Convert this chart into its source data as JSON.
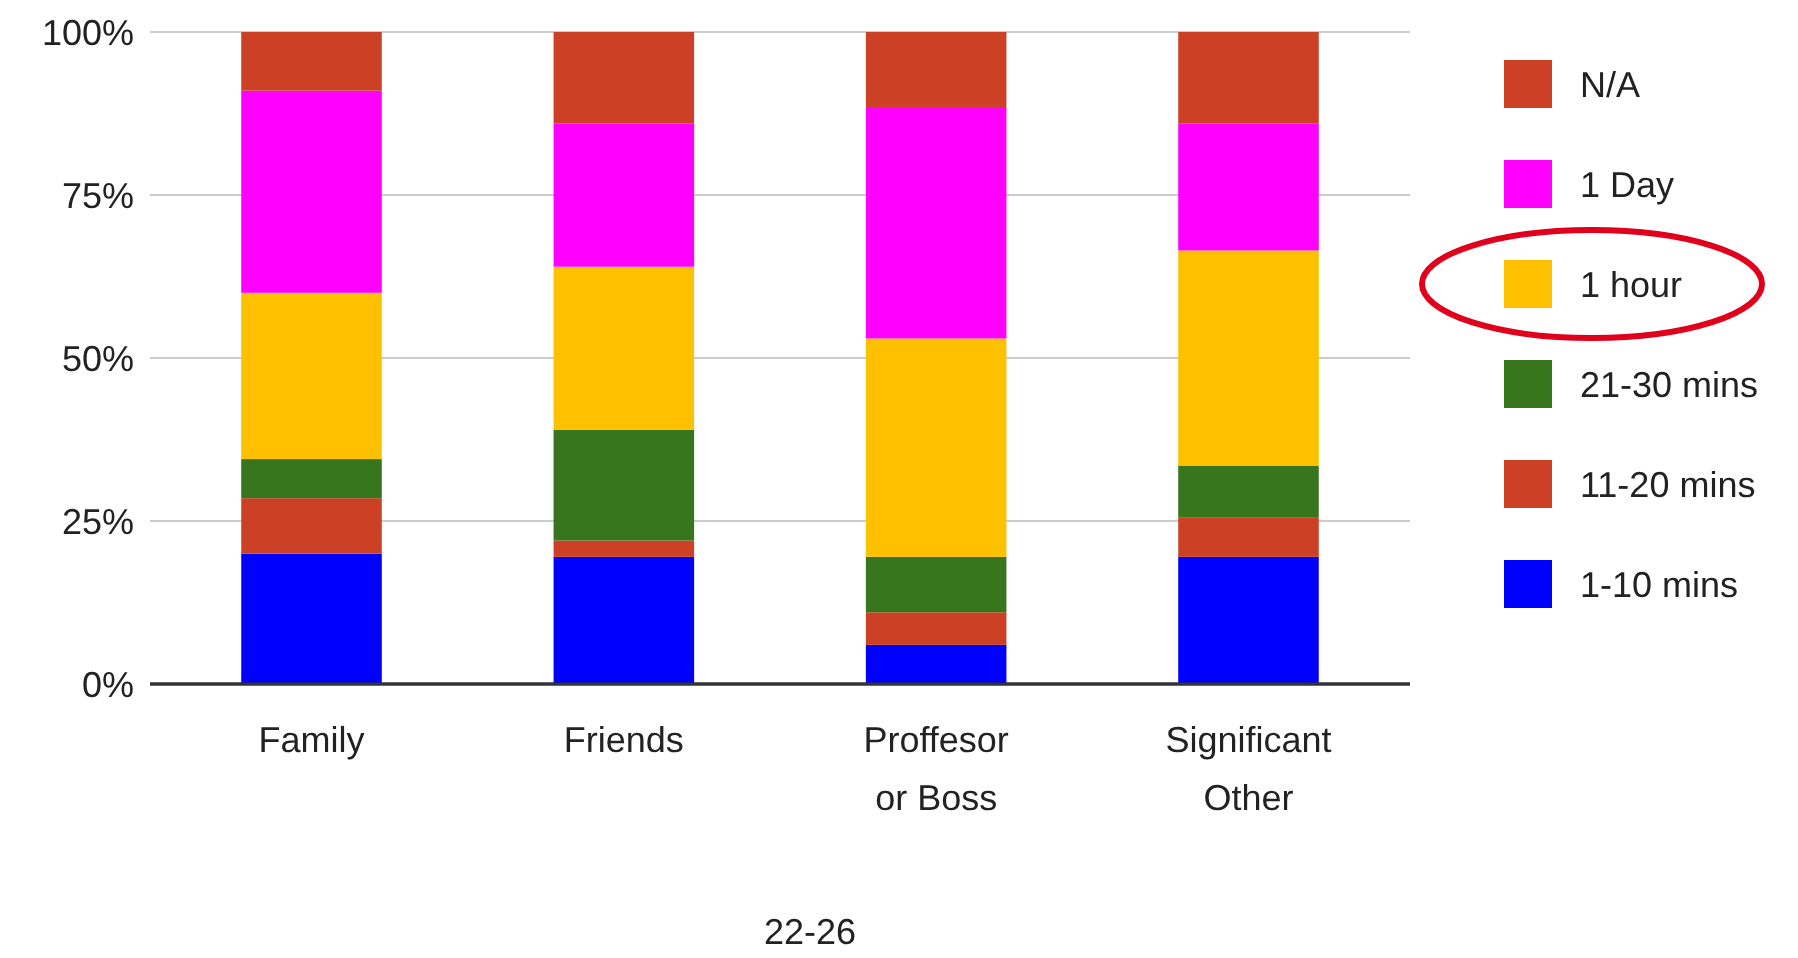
{
  "chart_data": {
    "type": "bar",
    "stacked": true,
    "xlabel": "22-26",
    "categories": [
      "Family",
      "Friends",
      "Proffesor or Boss",
      "Significant Other"
    ],
    "series": [
      {
        "name": "1-10 mins",
        "color": "#0000ff",
        "values": [
          20,
          19.5,
          6,
          19.5
        ]
      },
      {
        "name": "11-20 mins",
        "color": "#cc4125",
        "values": [
          8.5,
          2.5,
          5,
          6
        ]
      },
      {
        "name": "21-30 mins",
        "color": "#38761d",
        "values": [
          6,
          17,
          8.5,
          8
        ]
      },
      {
        "name": "1 hour",
        "color": "#ffc000",
        "values": [
          25.5,
          25,
          33.5,
          33
        ]
      },
      {
        "name": "1 Day",
        "color": "#ff00ff",
        "values": [
          31,
          22,
          35.5,
          19.5
        ]
      },
      {
        "name": "N/A",
        "color": "#cc4125",
        "values": [
          9,
          14,
          11.5,
          14
        ]
      }
    ],
    "ylim": [
      0,
      100
    ],
    "yticks": [
      {
        "value": 0,
        "label": "0%"
      },
      {
        "value": 25,
        "label": "25%"
      },
      {
        "value": 50,
        "label": "50%"
      },
      {
        "value": 75,
        "label": "75%"
      },
      {
        "value": 100,
        "label": "100%"
      }
    ],
    "grid": "y",
    "legend": "right"
  }
}
